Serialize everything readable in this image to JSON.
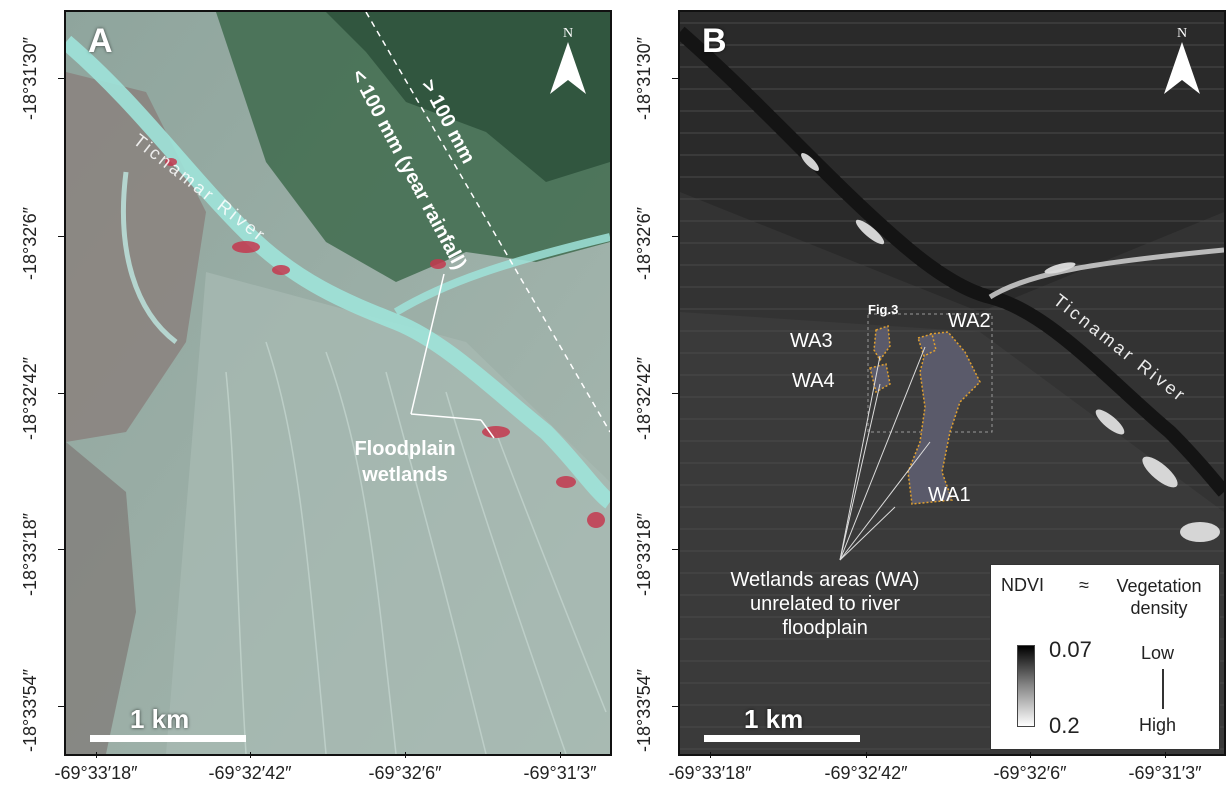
{
  "panel_a": {
    "letter": "A",
    "north_label": "N",
    "river_label": "Ticnamar River",
    "isohyet_above": "> 100 mm",
    "isohyet_below": "< 100 mm (year rainfall)",
    "wetlands_label_line1": "Floodplain",
    "wetlands_label_line2": "wetlands",
    "scale_label": "1 km"
  },
  "panel_b": {
    "letter": "B",
    "north_label": "N",
    "river_label": "Ticnamar River",
    "fig_ref": "Fig.3",
    "wetland_labels": [
      "WA1",
      "WA2",
      "WA3",
      "WA4"
    ],
    "callout_line1": "Wetlands areas (WA)",
    "callout_line2": "unrelated to river",
    "callout_line3": "floodplain",
    "scale_label": "1 km",
    "legend": {
      "title": "NDVI",
      "approx": "≈",
      "meaning_line1": "Vegetation",
      "meaning_line2": "density",
      "max_value": "0.07",
      "min_value": "0.2",
      "low_label": "Low",
      "high_label": "High"
    }
  },
  "axes": {
    "latitude_ticks": [
      "-18°31′30″",
      "-18°32′6″",
      "-18°32′42″",
      "-18°33′18″",
      "-18°33′54″"
    ],
    "longitude_ticks_a": [
      "-69°33′18″",
      "-69°32′42″",
      "-69°32′6″",
      "-69°31′3″"
    ],
    "longitude_ticks_b": [
      "-69°33′18″",
      "-69°32′42″",
      "-69°32′6″",
      "-69°31′3″"
    ]
  },
  "colors": {
    "wetland_red": "#c4384f",
    "river_cyan": "#9fe3d9",
    "vegetation_green": "#2f5a3e",
    "wetland_outline": "#e0a030"
  }
}
